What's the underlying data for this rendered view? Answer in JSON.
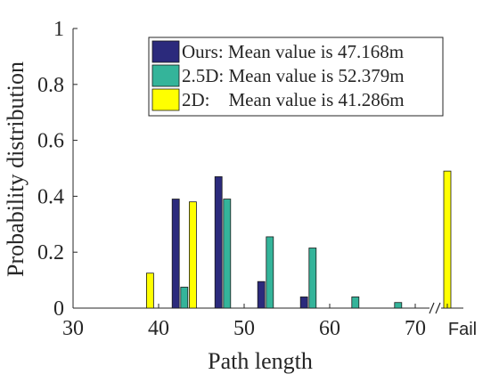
{
  "chart_data": {
    "type": "bar",
    "title": "",
    "xlabel": "Path length",
    "ylabel": "Probability distribution",
    "xlim": [
      30,
      72
    ],
    "ylim": [
      0,
      1
    ],
    "x_ticks": [
      "30",
      "40",
      "50",
      "60",
      "70"
    ],
    "extra_x_tick": "Fail",
    "y_ticks": [
      "0",
      "0.2",
      "0.4",
      "0.6",
      "0.8",
      "1"
    ],
    "grid": false,
    "legend_position": "top-right",
    "axis_break_marker": "//",
    "series": [
      {
        "name": "Ours: Mean value is 47.168m",
        "color": "#2b2a7c",
        "points": [
          {
            "x": 42,
            "y": 0.39
          },
          {
            "x": 47,
            "y": 0.47
          },
          {
            "x": 52,
            "y": 0.095
          },
          {
            "x": 57,
            "y": 0.04
          }
        ],
        "fail": 0
      },
      {
        "name": "2.5D: Mean value is 52.379m",
        "color": "#34b49a",
        "points": [
          {
            "x": 43,
            "y": 0.075
          },
          {
            "x": 48,
            "y": 0.39
          },
          {
            "x": 53,
            "y": 0.255
          },
          {
            "x": 58,
            "y": 0.215
          },
          {
            "x": 63,
            "y": 0.04
          },
          {
            "x": 68,
            "y": 0.02
          }
        ],
        "fail": 0
      },
      {
        "name": "2D:    Mean value is 41.286m",
        "color": "#ffff00",
        "points": [
          {
            "x": 39,
            "y": 0.125
          },
          {
            "x": 44,
            "y": 0.38
          }
        ],
        "fail": 0.49
      }
    ]
  }
}
